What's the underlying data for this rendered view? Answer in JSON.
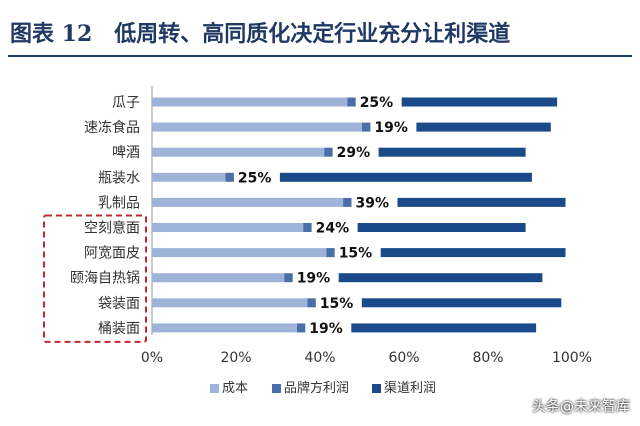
{
  "header": {
    "title": "图表 12　低周转、高同质化决定行业充分让利渠道"
  },
  "watermark": "头条@未来智库",
  "colors": {
    "title": "#1f3864",
    "cost": "#9db3d8",
    "brand_profit": "#4a6fa8",
    "channel_profit": "#1a4a8a",
    "highlight_box": "#c0282d"
  },
  "chart_data": {
    "type": "bar",
    "orientation": "horizontal",
    "stacked": true,
    "categories": [
      "瓜子",
      "速冻食品",
      "啤酒",
      "瓶装水",
      "乳制品",
      "空刻意面",
      "阿宽面皮",
      "颐海自热锅",
      "袋装面",
      "桶装面"
    ],
    "series": [
      {
        "name": "成本",
        "values": [
          46.5,
          50,
          41,
          17.5,
          45.5,
          36,
          41.5,
          31.5,
          37,
          34.5
        ]
      },
      {
        "name": "品牌方利润",
        "values": [
          2,
          2,
          2,
          2,
          2,
          2,
          2,
          2,
          2,
          2
        ]
      },
      {
        "name": "渠道利润",
        "values": [
          37,
          32,
          35,
          60,
          40,
          40,
          44,
          48.5,
          47.5,
          44
        ]
      }
    ],
    "data_labels": [
      "25%",
      "19%",
      "29%",
      "25%",
      "39%",
      "24%",
      "15%",
      "19%",
      "15%",
      "19%"
    ],
    "x_ticks": [
      "0%",
      "20%",
      "40%",
      "60%",
      "80%",
      "100%"
    ],
    "xlim": [
      0,
      100
    ],
    "highlighted_categories": [
      "空刻意面",
      "阿宽面皮",
      "颐海自热锅",
      "袋装面",
      "桶装面"
    ],
    "legend_position": "bottom",
    "grid": false
  }
}
